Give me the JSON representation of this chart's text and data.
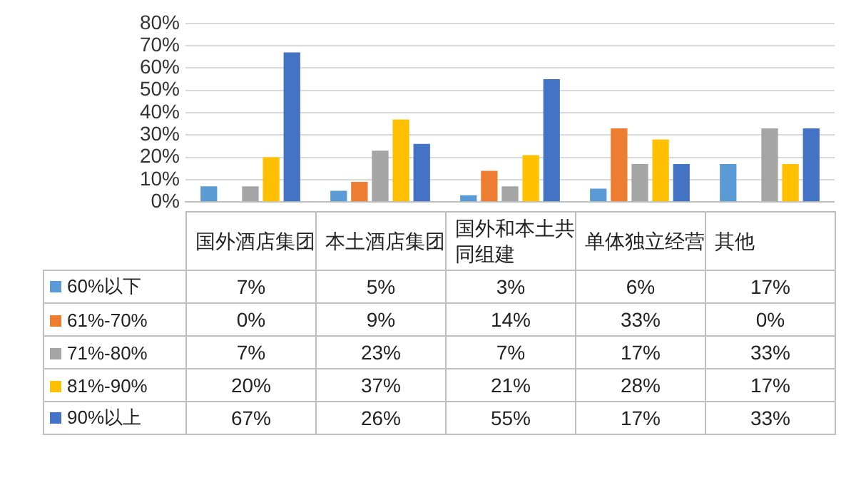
{
  "chart_data": {
    "type": "bar",
    "categories": [
      "国外酒店集团",
      "本土酒店集团",
      "国外和本土共同组建",
      "单体独立经营",
      "其他"
    ],
    "series": [
      {
        "name": "60%以下",
        "color": "#5b9bd5",
        "values": [
          7,
          5,
          3,
          6,
          17
        ],
        "value_labels": [
          "7%",
          "5%",
          "3%",
          "6%",
          "17%"
        ]
      },
      {
        "name": "61%-70%",
        "color": "#ed7d31",
        "values": [
          0,
          9,
          14,
          33,
          0
        ],
        "value_labels": [
          "0%",
          "9%",
          "14%",
          "33%",
          "0%"
        ]
      },
      {
        "name": "71%-80%",
        "color": "#a5a5a5",
        "values": [
          7,
          23,
          7,
          17,
          33
        ],
        "value_labels": [
          "7%",
          "23%",
          "7%",
          "17%",
          "33%"
        ]
      },
      {
        "name": "81%-90%",
        "color": "#ffc000",
        "values": [
          20,
          37,
          21,
          28,
          17
        ],
        "value_labels": [
          "20%",
          "37%",
          "21%",
          "28%",
          "17%"
        ]
      },
      {
        "name": "90%以上",
        "color": "#4472c4",
        "values": [
          67,
          26,
          55,
          17,
          33
        ],
        "value_labels": [
          "67%",
          "26%",
          "55%",
          "17%",
          "33%"
        ]
      }
    ],
    "ylim": [
      0,
      80
    ],
    "yticks": [
      {
        "value": 0,
        "label": "0%"
      },
      {
        "value": 10,
        "label": "10%"
      },
      {
        "value": 20,
        "label": "20%"
      },
      {
        "value": 30,
        "label": "30%"
      },
      {
        "value": 40,
        "label": "40%"
      },
      {
        "value": 50,
        "label": "50%"
      },
      {
        "value": 60,
        "label": "60%"
      },
      {
        "value": 70,
        "label": "70%"
      },
      {
        "value": 80,
        "label": "80%"
      }
    ],
    "grid": "y",
    "legend": "bottom left"
  }
}
